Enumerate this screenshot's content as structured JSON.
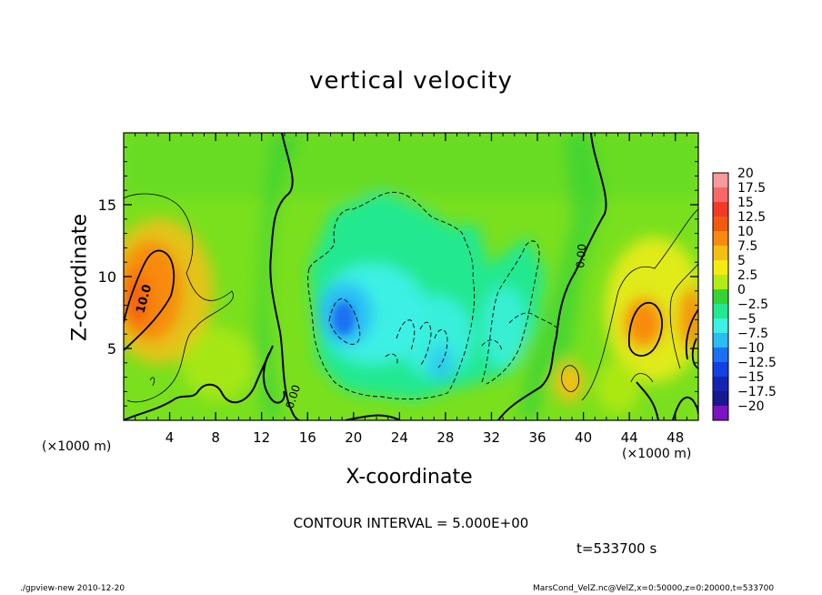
{
  "chart_data": {
    "type": "heatmap",
    "title": "vertical velocity",
    "xlabel": "X-coordinate",
    "ylabel": "Z-coordinate",
    "x_unit": "(×1000 m)",
    "x_ticks": [
      4,
      8,
      12,
      16,
      20,
      24,
      28,
      32,
      36,
      40,
      44,
      48
    ],
    "y_ticks": [
      5,
      10,
      15
    ],
    "xlim": [
      0,
      50
    ],
    "ylim": [
      0,
      20
    ],
    "colorbar": {
      "levels": [
        "20",
        "17.5",
        "15",
        "12.5",
        "10",
        "7.5",
        "5",
        "2.5",
        "0",
        "−2.5",
        "−5",
        "−7.5",
        "−10",
        "−12.5",
        "−15",
        "−17.5",
        "−20"
      ],
      "colors": [
        "#f89a9a",
        "#f86868",
        "#f23a2a",
        "#f25a10",
        "#f88a10",
        "#f6be14",
        "#f2ec14",
        "#b6ea14",
        "#36d236",
        "#24e890",
        "#3cf0e4",
        "#2abcf4",
        "#1a72f2",
        "#1240e2",
        "#1424b2",
        "#181890",
        "#7a14c0"
      ]
    },
    "contour_labels": [
      "10.0",
      "0.00",
      "0.00"
    ],
    "contour_interval": "CONTOUR INTERVAL = 5.000E+00",
    "time": "t=533700 s"
  },
  "footer": {
    "left": "./gpview-new  2010-12-20",
    "right": "MarsCond_VelZ.nc@VelZ,x=0:50000,z=0:20000,t=533700"
  },
  "colors": {
    "background": "#36d236",
    "accent": "#7ae01e"
  }
}
